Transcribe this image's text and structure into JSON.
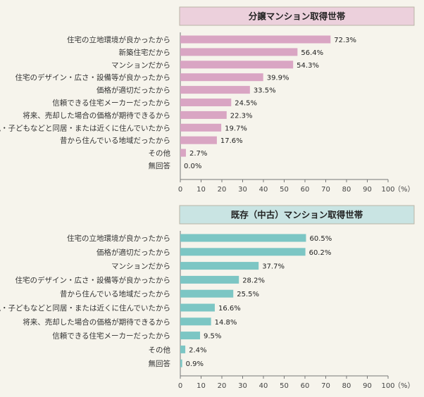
{
  "chart_data": [
    {
      "type": "bar",
      "orientation": "horizontal",
      "title": "分譲マンション取得世帯",
      "header_color": "#ecd0dc",
      "bar_color": "#d9a5c3",
      "categories": [
        "住宅の立地環境が良かったから",
        "新築住宅だから",
        "マンションだから",
        "住宅のデザイン・広さ・設備等が良かったから",
        "価格が適切だったから",
        "信頼できる住宅メーカーだったから",
        "将来、売却した場合の価格が期待できるから",
        "親・子どもなどと同居・または近くに住んでいたから",
        "昔から住んでいる地域だったから",
        "その他",
        "無回答"
      ],
      "values": [
        72.3,
        56.4,
        54.3,
        39.9,
        33.5,
        24.5,
        22.3,
        19.7,
        17.6,
        2.7,
        0.0
      ],
      "value_labels": [
        "72.3%",
        "56.4%",
        "54.3%",
        "39.9%",
        "33.5%",
        "24.5%",
        "22.3%",
        "19.7%",
        "17.6%",
        "2.7%",
        "0.0%"
      ],
      "xlim": [
        0,
        100
      ],
      "xticks": [
        "0",
        "10",
        "20",
        "30",
        "40",
        "50",
        "60",
        "70",
        "80",
        "90",
        "100"
      ],
      "xunit": "（%）"
    },
    {
      "type": "bar",
      "orientation": "horizontal",
      "title": "既存（中古）マンション取得世帯",
      "header_color": "#c9e4e3",
      "bar_color": "#7cc6c4",
      "categories": [
        "住宅の立地環境が良かったから",
        "価格が適切だったから",
        "マンションだから",
        "住宅のデザイン・広さ・設備等が良かったから",
        "昔から住んでいる地域だったから",
        "親・子どもなどと同居・または近くに住んでいたから",
        "将来、売却した場合の価格が期待できるから",
        "信頼できる住宅メーカーだったから",
        "その他",
        "無回答"
      ],
      "values": [
        60.5,
        60.2,
        37.7,
        28.2,
        25.5,
        16.6,
        14.8,
        9.5,
        2.4,
        0.9
      ],
      "value_labels": [
        "60.5%",
        "60.2%",
        "37.7%",
        "28.2%",
        "25.5%",
        "16.6%",
        "14.8%",
        "9.5%",
        "2.4%",
        "0.9%"
      ],
      "xlim": [
        0,
        100
      ],
      "xticks": [
        "0",
        "10",
        "20",
        "30",
        "40",
        "50",
        "60",
        "70",
        "80",
        "90",
        "100"
      ],
      "xunit": "（%）"
    }
  ]
}
